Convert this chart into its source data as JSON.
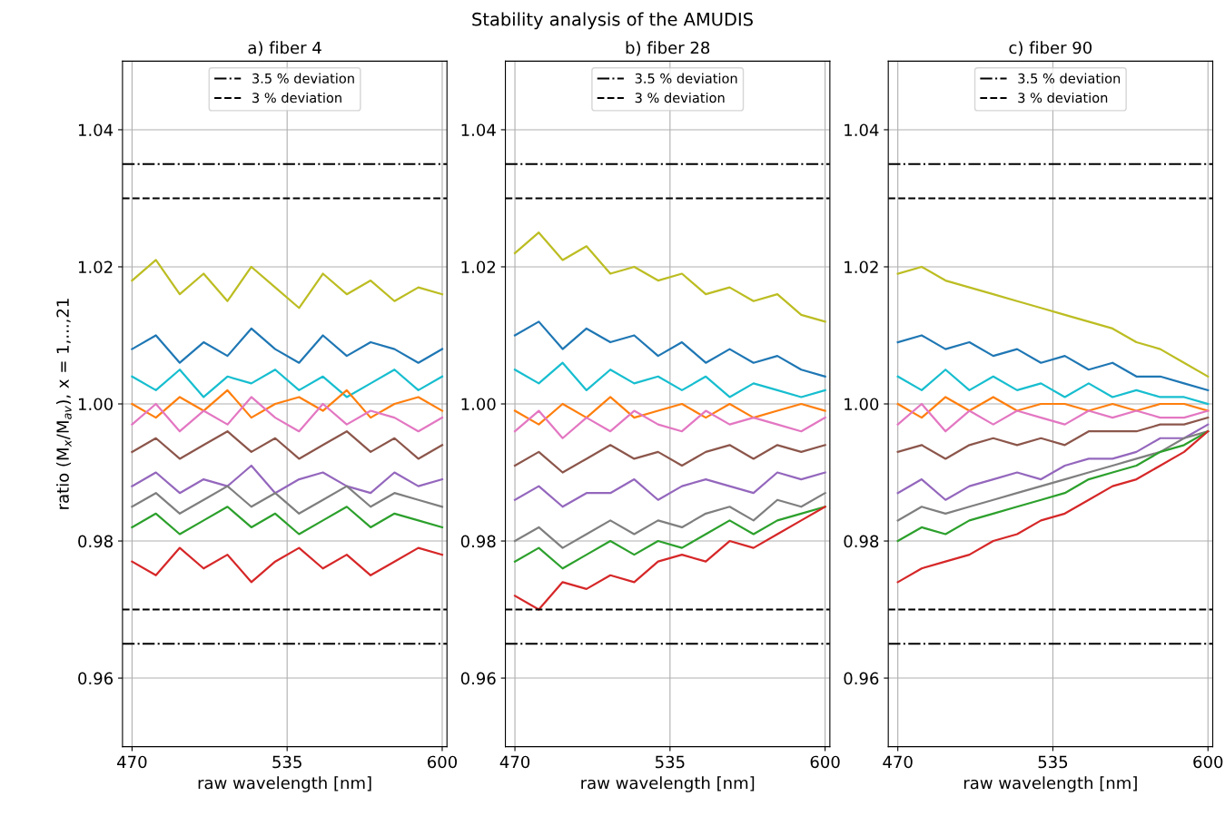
{
  "chart_data": [
    {
      "type": "line",
      "title": "a) fiber 4",
      "xlabel": "raw wavelength [nm]",
      "ylabel": "ratio (M$_{x}$/M$_{av}$), x = 1,...,21",
      "annotations": [
        "Stability analysis of the AMUDIS"
      ],
      "x": [
        470,
        480,
        490,
        500,
        510,
        520,
        530,
        540,
        550,
        560,
        570,
        580,
        590,
        600
      ],
      "xlim": [
        466,
        602
      ],
      "xticks": [
        470,
        535,
        600
      ],
      "ylim": [
        0.95,
        1.05
      ],
      "yticks": [
        {
          "value": 0.96,
          "label": "0.96"
        },
        {
          "value": 0.98,
          "label": "0.98"
        },
        {
          "value": 1.0,
          "label": "1.00"
        },
        {
          "value": 1.02,
          "label": "1.02"
        },
        {
          "value": 1.04,
          "label": "1.04"
        }
      ],
      "grid": true,
      "legend": "top",
      "line_style": "solid",
      "ref_lines": [
        {
          "axis": "y",
          "value": 1.035,
          "label": "3.5 % deviation",
          "line_style": "dashdot",
          "color": "#000000"
        },
        {
          "axis": "y",
          "value": 1.03,
          "label": "3 % deviation",
          "line_style": "dashed",
          "color": "#000000"
        },
        {
          "axis": "y",
          "value": 0.97,
          "line_style": "dashed",
          "color": "#000000"
        },
        {
          "axis": "y",
          "value": 0.965,
          "line_style": "dashdot",
          "color": "#000000"
        }
      ],
      "series": [
        {
          "color": "#bcbd22",
          "values": [
            1.018,
            1.021,
            1.016,
            1.019,
            1.015,
            1.02,
            1.017,
            1.014,
            1.019,
            1.016,
            1.018,
            1.015,
            1.017,
            1.016
          ]
        },
        {
          "color": "#1f77b4",
          "values": [
            1.008,
            1.01,
            1.006,
            1.009,
            1.007,
            1.011,
            1.008,
            1.006,
            1.01,
            1.007,
            1.009,
            1.008,
            1.006,
            1.008
          ]
        },
        {
          "color": "#17becf",
          "values": [
            1.004,
            1.002,
            1.005,
            1.001,
            1.004,
            1.003,
            1.005,
            1.002,
            1.004,
            1.001,
            1.003,
            1.005,
            1.002,
            1.004
          ]
        },
        {
          "color": "#ff7f0e",
          "values": [
            1.0,
            0.998,
            1.001,
            0.999,
            1.002,
            0.998,
            1.0,
            1.001,
            0.999,
            1.002,
            0.998,
            1.0,
            1.001,
            0.999
          ]
        },
        {
          "color": "#e377c2",
          "values": [
            0.997,
            1.0,
            0.996,
            0.999,
            0.997,
            1.001,
            0.998,
            0.996,
            1.0,
            0.997,
            0.999,
            0.998,
            0.996,
            0.998
          ]
        },
        {
          "color": "#8c564b",
          "values": [
            0.993,
            0.995,
            0.992,
            0.994,
            0.996,
            0.993,
            0.995,
            0.992,
            0.994,
            0.996,
            0.993,
            0.995,
            0.992,
            0.994
          ]
        },
        {
          "color": "#9467bd",
          "values": [
            0.988,
            0.99,
            0.987,
            0.989,
            0.988,
            0.991,
            0.987,
            0.989,
            0.99,
            0.988,
            0.987,
            0.99,
            0.988,
            0.989
          ]
        },
        {
          "color": "#7f7f7f",
          "values": [
            0.985,
            0.987,
            0.984,
            0.986,
            0.988,
            0.985,
            0.987,
            0.984,
            0.986,
            0.988,
            0.985,
            0.987,
            0.986,
            0.985
          ]
        },
        {
          "color": "#2ca02c",
          "values": [
            0.982,
            0.984,
            0.981,
            0.983,
            0.985,
            0.982,
            0.984,
            0.981,
            0.983,
            0.985,
            0.982,
            0.984,
            0.983,
            0.982
          ]
        },
        {
          "color": "#d62728",
          "values": [
            0.977,
            0.975,
            0.979,
            0.976,
            0.978,
            0.974,
            0.977,
            0.979,
            0.976,
            0.978,
            0.975,
            0.977,
            0.979,
            0.978
          ]
        }
      ]
    },
    {
      "type": "line",
      "title": "b) fiber 28",
      "xlabel": "raw wavelength [nm]",
      "x": [
        470,
        480,
        490,
        500,
        510,
        520,
        530,
        540,
        550,
        560,
        570,
        580,
        590,
        600
      ],
      "xlim": [
        466,
        602
      ],
      "xticks": [
        470,
        535,
        600
      ],
      "ylim": [
        0.95,
        1.05
      ],
      "yticks": [
        {
          "value": 0.96,
          "label": "0.96"
        },
        {
          "value": 0.98,
          "label": "0.98"
        },
        {
          "value": 1.0,
          "label": "1.00"
        },
        {
          "value": 1.02,
          "label": "1.02"
        },
        {
          "value": 1.04,
          "label": "1.04"
        }
      ],
      "grid": true,
      "legend": "top",
      "line_style": "solid",
      "ref_lines": [
        {
          "axis": "y",
          "value": 1.035,
          "label": "3.5 % deviation",
          "line_style": "dashdot",
          "color": "#000000"
        },
        {
          "axis": "y",
          "value": 1.03,
          "label": "3 % deviation",
          "line_style": "dashed",
          "color": "#000000"
        },
        {
          "axis": "y",
          "value": 0.97,
          "line_style": "dashed",
          "color": "#000000"
        },
        {
          "axis": "y",
          "value": 0.965,
          "line_style": "dashdot",
          "color": "#000000"
        }
      ],
      "series": [
        {
          "color": "#bcbd22",
          "values": [
            1.022,
            1.025,
            1.021,
            1.023,
            1.019,
            1.02,
            1.018,
            1.019,
            1.016,
            1.017,
            1.015,
            1.016,
            1.013,
            1.012
          ]
        },
        {
          "color": "#1f77b4",
          "values": [
            1.01,
            1.012,
            1.008,
            1.011,
            1.009,
            1.01,
            1.007,
            1.009,
            1.006,
            1.008,
            1.006,
            1.007,
            1.005,
            1.004
          ]
        },
        {
          "color": "#17becf",
          "values": [
            1.005,
            1.003,
            1.006,
            1.002,
            1.005,
            1.003,
            1.004,
            1.002,
            1.004,
            1.001,
            1.003,
            1.002,
            1.001,
            1.002
          ]
        },
        {
          "color": "#ff7f0e",
          "values": [
            0.999,
            0.997,
            1.0,
            0.998,
            1.001,
            0.998,
            0.999,
            1.0,
            0.998,
            1.0,
            0.998,
            0.999,
            1.0,
            0.999
          ]
        },
        {
          "color": "#e377c2",
          "values": [
            0.996,
            0.999,
            0.995,
            0.998,
            0.996,
            0.999,
            0.997,
            0.996,
            0.999,
            0.997,
            0.998,
            0.997,
            0.996,
            0.998
          ]
        },
        {
          "color": "#8c564b",
          "values": [
            0.991,
            0.993,
            0.99,
            0.992,
            0.994,
            0.992,
            0.993,
            0.991,
            0.993,
            0.994,
            0.992,
            0.994,
            0.993,
            0.994
          ]
        },
        {
          "color": "#9467bd",
          "values": [
            0.986,
            0.988,
            0.985,
            0.987,
            0.987,
            0.989,
            0.986,
            0.988,
            0.989,
            0.988,
            0.987,
            0.99,
            0.989,
            0.99
          ]
        },
        {
          "color": "#7f7f7f",
          "values": [
            0.98,
            0.982,
            0.979,
            0.981,
            0.983,
            0.981,
            0.983,
            0.982,
            0.984,
            0.985,
            0.983,
            0.986,
            0.985,
            0.987
          ]
        },
        {
          "color": "#2ca02c",
          "values": [
            0.977,
            0.979,
            0.976,
            0.978,
            0.98,
            0.978,
            0.98,
            0.979,
            0.981,
            0.983,
            0.981,
            0.983,
            0.984,
            0.985
          ]
        },
        {
          "color": "#d62728",
          "values": [
            0.972,
            0.97,
            0.974,
            0.973,
            0.975,
            0.974,
            0.977,
            0.978,
            0.977,
            0.98,
            0.979,
            0.981,
            0.983,
            0.985
          ]
        }
      ]
    },
    {
      "type": "line",
      "title": "c) fiber 90",
      "xlabel": "raw wavelength [nm]",
      "x": [
        470,
        480,
        490,
        500,
        510,
        520,
        530,
        540,
        550,
        560,
        570,
        580,
        590,
        600
      ],
      "xlim": [
        466,
        602
      ],
      "xticks": [
        470,
        535,
        600
      ],
      "ylim": [
        0.95,
        1.05
      ],
      "yticks": [
        {
          "value": 0.96,
          "label": "0.96"
        },
        {
          "value": 0.98,
          "label": "0.98"
        },
        {
          "value": 1.0,
          "label": "1.00"
        },
        {
          "value": 1.02,
          "label": "1.02"
        },
        {
          "value": 1.04,
          "label": "1.04"
        }
      ],
      "grid": true,
      "legend": "top",
      "line_style": "solid",
      "ref_lines": [
        {
          "axis": "y",
          "value": 1.035,
          "label": "3.5 % deviation",
          "line_style": "dashdot",
          "color": "#000000"
        },
        {
          "axis": "y",
          "value": 1.03,
          "label": "3 % deviation",
          "line_style": "dashed",
          "color": "#000000"
        },
        {
          "axis": "y",
          "value": 0.97,
          "line_style": "dashed",
          "color": "#000000"
        },
        {
          "axis": "y",
          "value": 0.965,
          "line_style": "dashdot",
          "color": "#000000"
        }
      ],
      "series": [
        {
          "color": "#bcbd22",
          "values": [
            1.019,
            1.02,
            1.018,
            1.017,
            1.016,
            1.015,
            1.014,
            1.013,
            1.012,
            1.011,
            1.009,
            1.008,
            1.006,
            1.004
          ]
        },
        {
          "color": "#1f77b4",
          "values": [
            1.009,
            1.01,
            1.008,
            1.009,
            1.007,
            1.008,
            1.006,
            1.007,
            1.005,
            1.006,
            1.004,
            1.004,
            1.003,
            1.002
          ]
        },
        {
          "color": "#17becf",
          "values": [
            1.004,
            1.002,
            1.005,
            1.002,
            1.004,
            1.002,
            1.003,
            1.001,
            1.003,
            1.001,
            1.002,
            1.001,
            1.001,
            1.0
          ]
        },
        {
          "color": "#ff7f0e",
          "values": [
            1.0,
            0.998,
            1.001,
            0.999,
            1.001,
            0.999,
            1.0,
            1.0,
            0.999,
            1.0,
            0.999,
            1.0,
            1.0,
            0.999
          ]
        },
        {
          "color": "#e377c2",
          "values": [
            0.997,
            1.0,
            0.996,
            0.999,
            0.997,
            0.999,
            0.998,
            0.997,
            0.999,
            0.998,
            0.999,
            0.998,
            0.998,
            0.999
          ]
        },
        {
          "color": "#8c564b",
          "values": [
            0.993,
            0.994,
            0.992,
            0.994,
            0.995,
            0.994,
            0.995,
            0.994,
            0.996,
            0.996,
            0.996,
            0.997,
            0.997,
            0.998
          ]
        },
        {
          "color": "#9467bd",
          "values": [
            0.987,
            0.989,
            0.986,
            0.988,
            0.989,
            0.99,
            0.989,
            0.991,
            0.992,
            0.992,
            0.993,
            0.995,
            0.995,
            0.997
          ]
        },
        {
          "color": "#7f7f7f",
          "values": [
            0.983,
            0.985,
            0.984,
            0.985,
            0.986,
            0.987,
            0.988,
            0.989,
            0.99,
            0.991,
            0.992,
            0.993,
            0.995,
            0.996
          ]
        },
        {
          "color": "#2ca02c",
          "values": [
            0.98,
            0.982,
            0.981,
            0.983,
            0.984,
            0.985,
            0.986,
            0.987,
            0.989,
            0.99,
            0.991,
            0.993,
            0.994,
            0.996
          ]
        },
        {
          "color": "#d62728",
          "values": [
            0.974,
            0.976,
            0.977,
            0.978,
            0.98,
            0.981,
            0.983,
            0.984,
            0.986,
            0.988,
            0.989,
            0.991,
            0.993,
            0.996
          ]
        }
      ]
    }
  ]
}
